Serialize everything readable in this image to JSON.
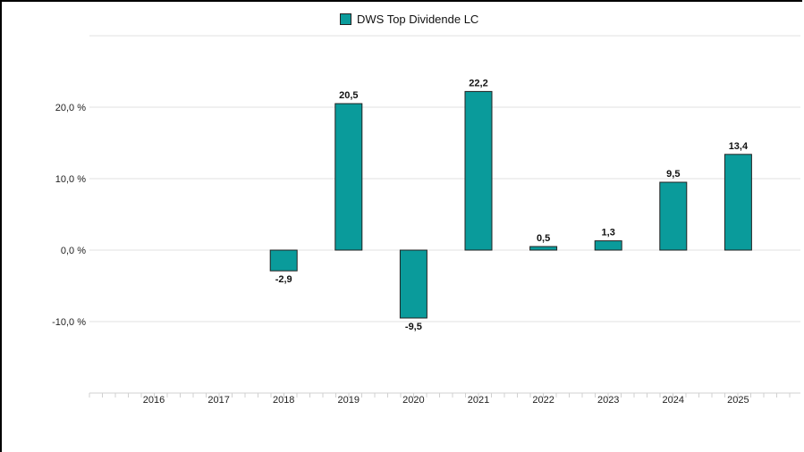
{
  "chart_data": {
    "type": "bar",
    "series": [
      {
        "name": "DWS Top Dividende LC",
        "values": [
          null,
          null,
          -2.9,
          20.5,
          -9.5,
          22.2,
          0.5,
          1.3,
          9.5,
          13.4
        ],
        "value_labels": [
          "",
          "",
          "-2,9",
          "20,5",
          "-9,5",
          "22,2",
          "0,5",
          "1,3",
          "9,5",
          "13,4"
        ]
      }
    ],
    "categories": [
      "2016",
      "2017",
      "2018",
      "2019",
      "2020",
      "2021",
      "2022",
      "2023",
      "2024",
      "2025"
    ],
    "yticks": [
      -10,
      0,
      10,
      20
    ],
    "ytick_labels": [
      "-10,0 %",
      "0,0 %",
      "10,0 %",
      "20,0 %"
    ],
    "ylim": [
      -20,
      30
    ],
    "grid": true,
    "legend": "top-center",
    "colors": {
      "bar": "#0a9b9b",
      "bar_border": "#222222",
      "grid": "#e2e2e2"
    }
  }
}
